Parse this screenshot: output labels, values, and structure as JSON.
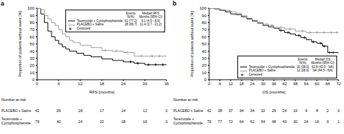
{
  "chart_data": [
    {
      "type": "line",
      "panel": "a",
      "x_label": "RFS [months]",
      "y_label": "Proportion of patients without event [%]",
      "xlim": [
        0,
        36
      ],
      "xticks": [
        0,
        6,
        12,
        18,
        24,
        30,
        36
      ],
      "ylim": [
        0,
        100
      ],
      "yticks": [
        0,
        10,
        20,
        30,
        40,
        50,
        60,
        70,
        80,
        90,
        100
      ],
      "legend": "upper right",
      "legend_headers": [
        [
          "Events",
          "N(%)"
        ],
        [
          "Median RFS",
          "Months (95% CI)"
        ]
      ],
      "censored_label": "Censored",
      "risk_title": "Number at risk",
      "risk_x": [
        0,
        6,
        12,
        18,
        24,
        30,
        36
      ],
      "series": [
        {
          "name": "Tecemotide + Cyclophosphamide",
          "color": "#000000",
          "line_style": "step",
          "marker": "plus",
          "x": [
            0,
            1,
            2,
            3,
            4,
            5,
            6,
            7,
            8,
            9,
            11,
            13,
            15,
            18,
            21,
            24,
            27,
            30,
            36
          ],
          "values": [
            100,
            92,
            80,
            68,
            60,
            55,
            50,
            46,
            43,
            40,
            37,
            34,
            32,
            29,
            27,
            25,
            23,
            21,
            21
          ],
          "censored": [
            26,
            28,
            31,
            33,
            35
          ],
          "events": "61 (77.2)",
          "median": "6.1 (4.5 - 8.9)",
          "at_risk": [
            79,
            40,
            24,
            22,
            18,
            16,
            0
          ]
        },
        {
          "name": "PLACEBO + Saline",
          "color": "#999999",
          "line_style": "step",
          "marker": "plus",
          "x": [
            0,
            1,
            2,
            3,
            4,
            5,
            6,
            7,
            8,
            9,
            10,
            12,
            15,
            18,
            21,
            24,
            27,
            30,
            36
          ],
          "values": [
            100,
            98,
            90,
            85,
            80,
            76,
            70,
            64,
            60,
            55,
            52,
            48,
            45,
            41,
            40,
            38,
            33,
            33,
            33
          ],
          "censored": [
            19,
            22,
            25,
            29,
            32,
            34
          ],
          "events": "28 (66.7)",
          "median": "11.4 (3.7 - 21.2)",
          "at_risk": [
            42,
            26,
            18,
            17,
            14,
            12,
            0
          ]
        }
      ]
    },
    {
      "type": "line",
      "panel": "b",
      "x_label": "OS [months]",
      "y_label": "Proportion of patients without event [%]",
      "xlim": [
        0,
        72
      ],
      "xticks": [
        0,
        6,
        12,
        18,
        24,
        30,
        36,
        42,
        48,
        54,
        60,
        66,
        72
      ],
      "ylim": [
        0,
        100
      ],
      "yticks": [
        0,
        10,
        20,
        30,
        40,
        50,
        60,
        70,
        80,
        90,
        100
      ],
      "legend": "lower right",
      "legend_headers": [
        [
          "Events",
          "N(%)"
        ],
        [
          "Median OS",
          "Months (95% CI)"
        ]
      ],
      "censored_label": "Censored",
      "risk_title": "Number at risk",
      "risk_x": [
        0,
        6,
        12,
        18,
        24,
        30,
        36,
        42,
        48,
        54,
        60,
        66,
        72
      ],
      "series": [
        {
          "name": "Tecemotide + Cyclophosphamide",
          "color": "#000000",
          "line_style": "step",
          "marker": "plus",
          "x": [
            0,
            3,
            6,
            9,
            12,
            15,
            18,
            21,
            24,
            27,
            30,
            33,
            36,
            39,
            42,
            45,
            48,
            51,
            54,
            57,
            60,
            63,
            66,
            72
          ],
          "values": [
            100,
            99,
            97,
            95,
            92,
            91,
            88,
            85,
            82,
            79,
            76,
            74,
            72,
            69,
            66,
            64,
            62,
            59,
            56,
            53,
            51,
            47,
            38,
            38
          ],
          "censored": [
            40,
            44,
            50,
            53,
            58,
            62,
            64,
            67,
            69
          ],
          "events": "30 (38.0)",
          "median": "62.8 (43.0 - NA)",
          "at_risk": [
            79,
            77,
            72,
            64,
            62,
            54,
            48,
            40,
            30,
            24,
            16,
            9,
            1
          ]
        },
        {
          "name": "PLACEBO + Saline",
          "color": "#999999",
          "line_style": "step",
          "marker": "plus",
          "x": [
            0,
            3,
            6,
            9,
            12,
            15,
            18,
            21,
            24,
            27,
            30,
            33,
            36,
            42,
            48,
            54,
            60,
            72
          ],
          "values": [
            100,
            100,
            98,
            97,
            95,
            93,
            90,
            86,
            83,
            80,
            78,
            76,
            73,
            71,
            68,
            66,
            66,
            66
          ],
          "censored": [
            28,
            35,
            40,
            45,
            52,
            56,
            60,
            64,
            68,
            71
          ],
          "events": "12 (28.6)",
          "median": "NA (44.5 - NA)",
          "at_risk": [
            42,
            38,
            37,
            34,
            34,
            32,
            29,
            24,
            16,
            9,
            8,
            2,
            0
          ]
        }
      ]
    }
  ]
}
